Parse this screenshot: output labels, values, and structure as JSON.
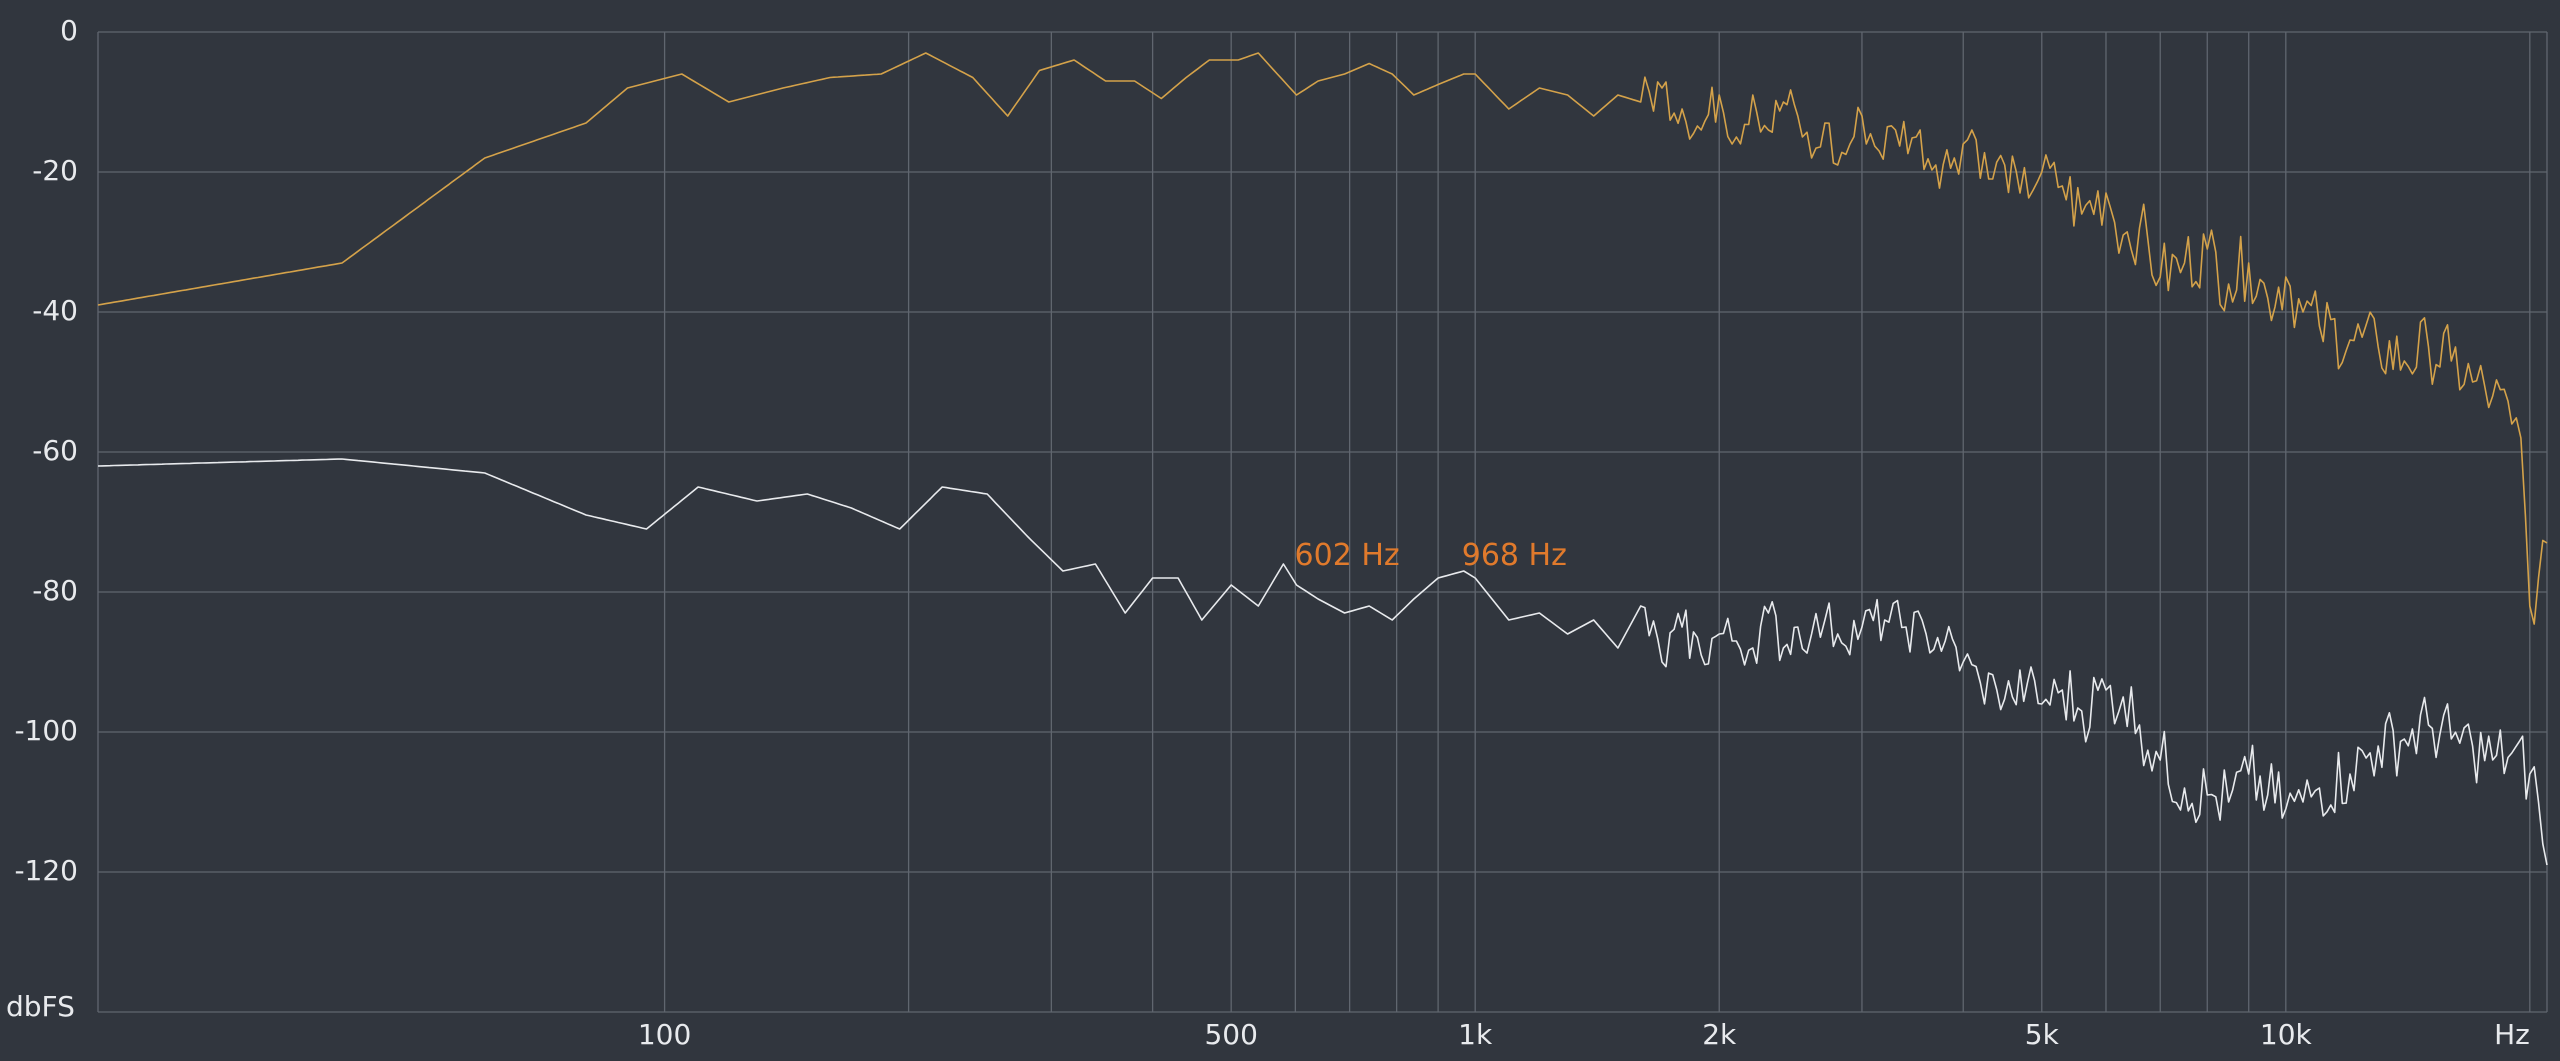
{
  "chart_data": {
    "type": "line",
    "title": "",
    "xlabel": "Hz",
    "ylabel": "dbFS",
    "x_scale": "log",
    "xlim": [
      20,
      21000
    ],
    "ylim": [
      -140,
      0
    ],
    "grid": true,
    "y_ticks": [
      0,
      -20,
      -40,
      -60,
      -80,
      -100,
      -120
    ],
    "y_tick_labels": [
      "0",
      "-20",
      "-40",
      "-60",
      "-80",
      "-100",
      "-120"
    ],
    "x_tick_labels": [
      {
        "x": 100,
        "label": "100"
      },
      {
        "x": 500,
        "label": "500"
      },
      {
        "x": 1000,
        "label": "1k"
      },
      {
        "x": 2000,
        "label": "2k"
      },
      {
        "x": 5000,
        "label": "5k"
      },
      {
        "x": 10000,
        "label": "10k"
      }
    ],
    "x_unit_label": "Hz",
    "y_unit_label": "dbFS",
    "x_gridlines": [
      100,
      200,
      300,
      400,
      500,
      600,
      700,
      800,
      900,
      1000,
      2000,
      3000,
      4000,
      5000,
      6000,
      7000,
      8000,
      9000,
      10000,
      20000
    ],
    "annotations": [
      {
        "text": "602 Hz",
        "x": 602,
        "y": -77,
        "color": "#e07a2c"
      },
      {
        "text": "968 Hz",
        "x": 968,
        "y": -77,
        "color": "#e07a2c"
      }
    ],
    "series": [
      {
        "color": "#d4a24a",
        "x": [
          20,
          40,
          60,
          80,
          90,
          105,
          120,
          140,
          160,
          185,
          210,
          240,
          265,
          290,
          320,
          350,
          380,
          410,
          440,
          470,
          510,
          540,
          570,
          602,
          640,
          690,
          740,
          790,
          840,
          900,
          968,
          1000,
          1100,
          1200,
          1300,
          1400,
          1500,
          1600,
          1700,
          1800,
          1900,
          2000,
          2100,
          2200,
          2300,
          2400,
          2500,
          2600,
          2700,
          2800,
          2900,
          3000,
          3150,
          3300,
          3500,
          3700,
          3900,
          4100,
          4300,
          4500,
          4700,
          5000,
          5300,
          5600,
          6000,
          6300,
          6600,
          7000,
          7500,
          8000,
          8500,
          9000,
          9500,
          10000,
          10500,
          11000,
          12000,
          13000,
          14000,
          15000,
          16000,
          17000,
          18000,
          19000,
          19500,
          20000,
          20500,
          21000
        ],
        "values": [
          -39,
          -33,
          -18,
          -13,
          -8,
          -6,
          -10,
          -8,
          -6.5,
          -6,
          -3,
          -6.5,
          -12,
          -5.5,
          -4,
          -7,
          -7,
          -9.5,
          -6.5,
          -4,
          -4,
          -3,
          -6,
          -9,
          -7,
          -6,
          -4.5,
          -6,
          -9,
          -7.5,
          -6,
          -6,
          -11,
          -8,
          -9,
          -12,
          -9,
          -10,
          -8,
          -11,
          -14,
          -9,
          -15,
          -9,
          -14,
          -10,
          -12,
          -18,
          -13,
          -19,
          -16,
          -12,
          -17,
          -14,
          -15,
          -19,
          -18,
          -14,
          -21,
          -19,
          -23,
          -20,
          -22,
          -26,
          -23,
          -29,
          -28,
          -35,
          -33,
          -31,
          -36,
          -33,
          -38,
          -35,
          -40,
          -42,
          -44,
          -45,
          -47,
          -45,
          -47,
          -50,
          -52,
          -56,
          -58,
          -82,
          -78,
          -73
        ]
      },
      {
        "color": "#e8eaed",
        "x": [
          20,
          40,
          60,
          80,
          95,
          110,
          130,
          150,
          170,
          195,
          220,
          250,
          280,
          310,
          340,
          370,
          400,
          430,
          460,
          500,
          540,
          580,
          602,
          640,
          690,
          740,
          790,
          840,
          900,
          968,
          1000,
          1100,
          1200,
          1300,
          1400,
          1500,
          1600,
          1700,
          1800,
          1900,
          2000,
          2100,
          2200,
          2300,
          2400,
          2500,
          2600,
          2700,
          2800,
          3000,
          3200,
          3400,
          3600,
          3800,
          4000,
          4200,
          4400,
          4600,
          4800,
          5000,
          5300,
          5600,
          6000,
          6300,
          6600,
          7000,
          7500,
          8000,
          8500,
          9000,
          9500,
          10000,
          10500,
          11000,
          12000,
          13000,
          14000,
          15000,
          16000,
          17000,
          18000,
          19000,
          20000,
          20500,
          21000
        ],
        "values": [
          -62,
          -61,
          -63,
          -69,
          -71,
          -65,
          -67,
          -66,
          -68,
          -71,
          -65,
          -66,
          -72,
          -77,
          -76,
          -83,
          -78,
          -78,
          -84,
          -79,
          -82,
          -76,
          -79,
          -81,
          -83,
          -82,
          -84,
          -81,
          -78,
          -77,
          -78,
          -84,
          -83,
          -86,
          -84,
          -88,
          -82,
          -90,
          -85,
          -89,
          -86,
          -87,
          -88,
          -83,
          -88,
          -85,
          -86,
          -84,
          -86,
          -85,
          -84,
          -85,
          -86,
          -87,
          -90,
          -93,
          -94,
          -95,
          -93,
          -96,
          -94,
          -97,
          -94,
          -95,
          -99,
          -104,
          -108,
          -109,
          -110,
          -106,
          -109,
          -111,
          -110,
          -108,
          -106,
          -102,
          -101,
          -99,
          -101,
          -102,
          -104,
          -103,
          -106,
          -110,
          -119
        ]
      }
    ]
  }
}
